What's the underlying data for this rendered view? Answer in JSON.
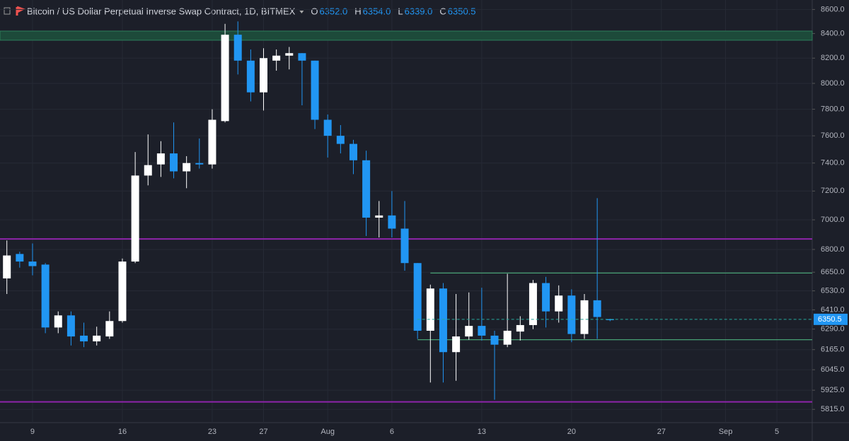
{
  "chart_data": {
    "type": "candlestick",
    "title": "Bitcoin / US Dollar Perpetual Inverse Swap Contract, 1D, BITMEX",
    "legend_fields": [
      {
        "key": "O",
        "label": "6352.0"
      },
      {
        "key": "H",
        "label": "6354.0"
      },
      {
        "key": "L",
        "label": "6339.0"
      },
      {
        "key": "C",
        "label": "6350.5"
      }
    ],
    "categories": [
      null,
      null,
      "9",
      null,
      null,
      null,
      null,
      null,
      null,
      "16",
      null,
      null,
      null,
      null,
      null,
      null,
      "23",
      null,
      null,
      null,
      "27",
      null,
      null,
      null,
      null,
      "Aug",
      null,
      null,
      null,
      null,
      "6",
      null,
      null,
      null,
      null,
      null,
      null,
      "13",
      null,
      null,
      null,
      null,
      null,
      null,
      "20",
      null,
      null,
      null,
      null,
      null,
      null,
      "27",
      null,
      null,
      null,
      null,
      "Sep",
      null,
      null,
      null,
      "5",
      null,
      null
    ],
    "open": [
      6610,
      6770,
      6720,
      6700,
      6300,
      6375,
      6250,
      6215,
      6245,
      6340,
      6720,
      7310,
      7390,
      7470,
      7340,
      7400,
      7390,
      7710,
      8390,
      8180,
      7930,
      8180,
      8220,
      8240,
      8180,
      7720,
      7600,
      7540,
      7420,
      7015,
      7030,
      6940,
      6710,
      6280,
      6545,
      6150,
      6245,
      6310,
      6250,
      6195,
      6275,
      6315,
      6580,
      6400,
      6500,
      6260,
      6470,
      6352,
      null,
      null,
      null,
      null,
      null,
      null,
      null,
      null,
      null,
      null,
      null,
      null,
      null,
      null,
      null
    ],
    "high": [
      6860,
      6785,
      6840,
      6710,
      6400,
      6400,
      6330,
      6305,
      6400,
      6740,
      7480,
      7610,
      7560,
      7700,
      7450,
      7580,
      7800,
      8480,
      8500,
      8270,
      8280,
      8270,
      8290,
      8240,
      8180,
      7760,
      7680,
      7570,
      7490,
      7130,
      7200,
      7130,
      6710,
      6570,
      6580,
      6510,
      6520,
      6550,
      6280,
      6640,
      6370,
      6600,
      6620,
      6565,
      6540,
      6510,
      7150,
      6354,
      null,
      null,
      null,
      null,
      null,
      null,
      null,
      null,
      null,
      null,
      null,
      null,
      null,
      null,
      null
    ],
    "low": [
      6510,
      6680,
      6630,
      6265,
      6265,
      6190,
      6180,
      6190,
      6230,
      6330,
      6710,
      7240,
      7300,
      7290,
      7220,
      7360,
      7360,
      7700,
      8070,
      7860,
      7790,
      8100,
      8110,
      7830,
      7650,
      7440,
      7470,
      7320,
      6890,
      6880,
      6880,
      6660,
      6230,
      5970,
      5970,
      5980,
      6225,
      6220,
      5870,
      6180,
      6220,
      6290,
      6300,
      6330,
      6210,
      6230,
      6230,
      6339,
      null,
      null,
      null,
      null,
      null,
      null,
      null,
      null,
      null,
      null,
      null,
      null,
      null,
      null,
      null
    ],
    "close": [
      6760,
      6720,
      6690,
      6300,
      6375,
      6245,
      6215,
      6250,
      6340,
      6720,
      7310,
      7385,
      7470,
      7340,
      7400,
      7390,
      7720,
      8390,
      8180,
      7930,
      8200,
      8220,
      8240,
      8180,
      7720,
      7600,
      7540,
      7420,
      7015,
      7030,
      6940,
      6710,
      6280,
      6545,
      6150,
      6245,
      6310,
      6250,
      6195,
      6280,
      6315,
      6580,
      6400,
      6500,
      6260,
      6470,
      6365,
      6350.5,
      null,
      null,
      null,
      null,
      null,
      null,
      null,
      null,
      null,
      null,
      null,
      null,
      null,
      null,
      null
    ],
    "up_color": "#ffffff",
    "down_color": "#2196f3",
    "log_scale": true,
    "grid": true,
    "ylim": [
      5740,
      8680
    ],
    "yticks": [
      {
        "value": 8600,
        "label": "8600.0"
      },
      {
        "value": 8400,
        "label": "8400.0"
      },
      {
        "value": 8200,
        "label": "8200.0"
      },
      {
        "value": 8000,
        "label": "8000.0"
      },
      {
        "value": 7800,
        "label": "7800.0"
      },
      {
        "value": 7600,
        "label": "7600.0"
      },
      {
        "value": 7400,
        "label": "7400.0"
      },
      {
        "value": 7200,
        "label": "7200.0"
      },
      {
        "value": 7000,
        "label": "7000.0"
      },
      {
        "value": 6800,
        "label": "6800.0"
      },
      {
        "value": 6650,
        "label": "6650.0"
      },
      {
        "value": 6530,
        "label": "6530.0"
      },
      {
        "value": 6410,
        "label": "6410.0"
      },
      {
        "value": 6290,
        "label": "6290.0"
      },
      {
        "value": 6165,
        "label": "6165.0"
      },
      {
        "value": 6045,
        "label": "6045.0"
      },
      {
        "value": 5925,
        "label": "5925.0"
      },
      {
        "value": 5815,
        "label": "5815.0"
      }
    ],
    "last_price": {
      "value": 6350.5,
      "label": "6350.5"
    },
    "zones": [
      {
        "low": 8345,
        "high": 8420,
        "color": "#1d4a3a"
      }
    ],
    "hlines": [
      {
        "value": 6870,
        "color": "#8e24aa"
      },
      {
        "value": 5858,
        "color": "#8e24aa"
      }
    ],
    "range_lines": [
      {
        "value": 6645,
        "from": 33,
        "color": "#4caf7d"
      },
      {
        "value": 6225,
        "from": 32,
        "color": "#4caf7d"
      }
    ]
  }
}
